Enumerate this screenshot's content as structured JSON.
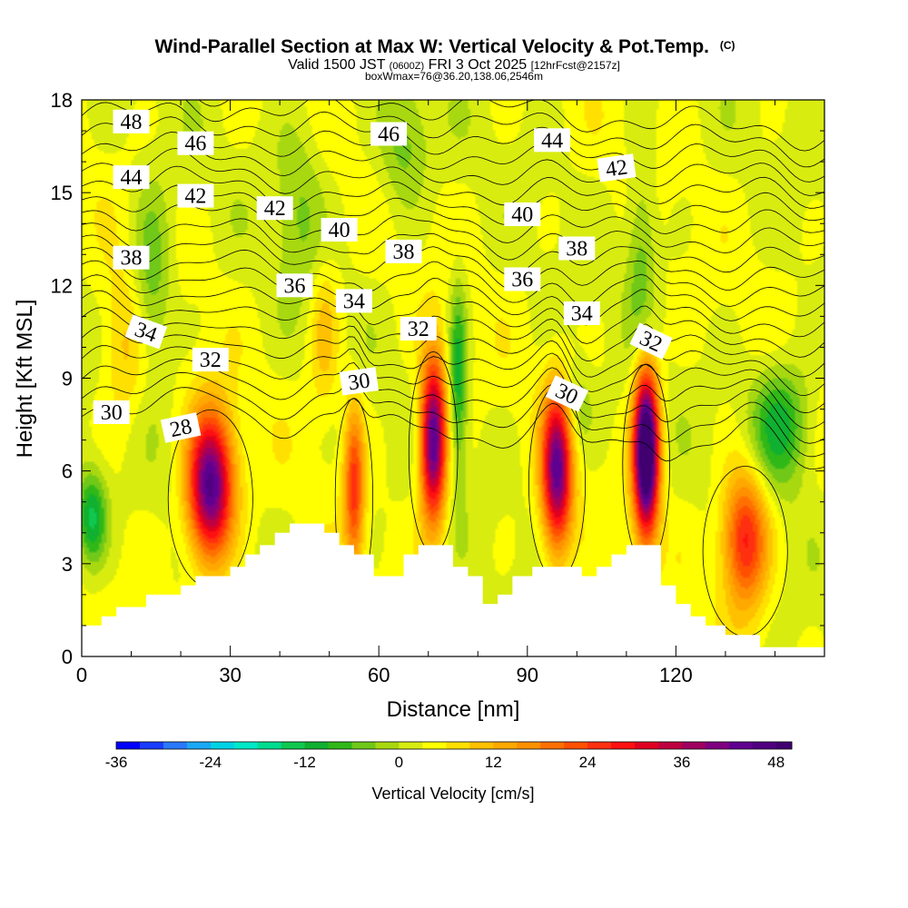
{
  "chart_data": {
    "type": "heatmap",
    "title": "Wind-Parallel Section at Max W: Vertical Velocity & Pot.Temp.",
    "title_units": "(C)",
    "subtitle_prefix": "Valid 1500 JST",
    "subtitle_utc": "(0600Z)",
    "subtitle_date": "FRI 3 Oct 2025",
    "subtitle_fcst": "[12hrFcst@2157z]",
    "subtitle_box": "boxWmax=76@36.20,138.06,2546m",
    "xlabel": "Distance [nm]",
    "ylabel": "Height [Kft MSL]",
    "xlim": [
      0,
      150
    ],
    "ylim": [
      0,
      18
    ],
    "x_ticks": [
      0,
      30,
      60,
      90,
      120
    ],
    "x_tick_labels": [
      "0",
      "30",
      "60",
      "90",
      "120"
    ],
    "y_ticks": [
      0,
      3,
      6,
      9,
      12,
      15,
      18
    ],
    "y_tick_labels": [
      "0",
      "3",
      "6",
      "9",
      "12",
      "15",
      "18"
    ],
    "colorbar": {
      "label": "Vertical Velocity [cm/s]",
      "min": -36,
      "max": 50,
      "step": 3,
      "tick_values": [
        -36,
        -24,
        -12,
        0,
        12,
        24,
        36,
        48
      ],
      "tick_labels": [
        "-36",
        "-24",
        "-12",
        "0",
        "12",
        "24",
        "36",
        "48"
      ],
      "colors": [
        "#0000ff",
        "#1a3cff",
        "#2a78ff",
        "#1aa8f5",
        "#00d2e6",
        "#00e8c8",
        "#00dc90",
        "#10c850",
        "#10b030",
        "#30b818",
        "#70c818",
        "#a8d810",
        "#d8ec10",
        "#ffff00",
        "#ffe000",
        "#ffc000",
        "#ffa800",
        "#ff9000",
        "#ff7000",
        "#ff5000",
        "#ff3010",
        "#ff1010",
        "#e00020",
        "#c00040",
        "#a00060",
        "#800080",
        "#600090",
        "#500080",
        "#400070"
      ]
    },
    "terrain_profile": [
      [
        0,
        1.0
      ],
      [
        4,
        1.0
      ],
      [
        4,
        1.3
      ],
      [
        7,
        1.3
      ],
      [
        7,
        1.6
      ],
      [
        13,
        1.6
      ],
      [
        13,
        2.0
      ],
      [
        20,
        2.0
      ],
      [
        20,
        2.3
      ],
      [
        23,
        2.3
      ],
      [
        23,
        2.6
      ],
      [
        30,
        2.6
      ],
      [
        30,
        2.9
      ],
      [
        33,
        2.9
      ],
      [
        33,
        3.3
      ],
      [
        36,
        3.3
      ],
      [
        36,
        3.6
      ],
      [
        39,
        3.6
      ],
      [
        39,
        4.0
      ],
      [
        42,
        4.0
      ],
      [
        42,
        4.3
      ],
      [
        49,
        4.3
      ],
      [
        49,
        4.0
      ],
      [
        52,
        4.0
      ],
      [
        52,
        3.6
      ],
      [
        55,
        3.6
      ],
      [
        55,
        3.3
      ],
      [
        59,
        3.3
      ],
      [
        59,
        2.6
      ],
      [
        65,
        2.6
      ],
      [
        65,
        3.3
      ],
      [
        68,
        3.3
      ],
      [
        68,
        3.6
      ],
      [
        75,
        3.6
      ],
      [
        75,
        2.9
      ],
      [
        78,
        2.9
      ],
      [
        78,
        2.6
      ],
      [
        81,
        2.6
      ],
      [
        81,
        1.7
      ],
      [
        84,
        1.7
      ],
      [
        84,
        2.0
      ],
      [
        87,
        2.0
      ],
      [
        87,
        2.6
      ],
      [
        91,
        2.6
      ],
      [
        91,
        2.9
      ],
      [
        101,
        2.9
      ],
      [
        101,
        2.6
      ],
      [
        104,
        2.6
      ],
      [
        104,
        2.9
      ],
      [
        107,
        2.9
      ],
      [
        107,
        3.3
      ],
      [
        110,
        3.3
      ],
      [
        110,
        3.6
      ],
      [
        117,
        3.6
      ],
      [
        117,
        2.3
      ],
      [
        120,
        2.3
      ],
      [
        120,
        1.7
      ],
      [
        123,
        1.7
      ],
      [
        123,
        1.3
      ],
      [
        126,
        1.3
      ],
      [
        126,
        1.0
      ],
      [
        130,
        1.0
      ],
      [
        130,
        0.7
      ],
      [
        137,
        0.7
      ],
      [
        137,
        0.3
      ],
      [
        150,
        0.3
      ]
    ],
    "w_cells": [
      {
        "x": 26,
        "z": 5.5,
        "sx": 4.5,
        "sz": 2.3,
        "a": 44
      },
      {
        "x": 55,
        "z": 5.5,
        "sx": 2.0,
        "sz": 2.6,
        "a": 22
      },
      {
        "x": 71,
        "z": 7.0,
        "sx": 2.6,
        "sz": 2.6,
        "a": 44
      },
      {
        "x": 96,
        "z": 6.0,
        "sx": 3.0,
        "sz": 2.5,
        "a": 40
      },
      {
        "x": 114,
        "z": 6.6,
        "sx": 2.5,
        "sz": 2.6,
        "a": 58
      },
      {
        "x": 134,
        "z": 3.8,
        "sx": 4.5,
        "sz": 2.2,
        "a": 26
      },
      {
        "x": 9,
        "z": 10.0,
        "sx": 5.0,
        "sz": 2.5,
        "a": 8
      },
      {
        "x": 49,
        "z": 10.5,
        "sx": 3.0,
        "sz": 2.5,
        "a": 8
      },
      {
        "x": 2,
        "z": 4.5,
        "sx": 3.0,
        "sz": 1.5,
        "a": -16
      },
      {
        "x": 14,
        "z": 12.0,
        "sx": 4.0,
        "sz": 3.0,
        "a": -10
      },
      {
        "x": 76,
        "z": 9.0,
        "sx": 1.8,
        "sz": 3.0,
        "a": -14
      },
      {
        "x": 141,
        "z": 7.5,
        "sx": 6.0,
        "sz": 2.0,
        "a": -14
      },
      {
        "x": 113,
        "z": 13.0,
        "sx": 3.0,
        "sz": 3.0,
        "a": -8
      },
      {
        "x": 65,
        "z": 16.5,
        "sx": 5.0,
        "sz": 2.0,
        "a": -8
      },
      {
        "x": 100,
        "z": 8.0,
        "sx": 3.0,
        "sz": 1.5,
        "a": -6
      },
      {
        "x": 44,
        "z": 14.5,
        "sx": 5.0,
        "sz": 3.0,
        "a": -6
      }
    ],
    "theta_contours": [
      28,
      29,
      30,
      31,
      32,
      33,
      34,
      35,
      36,
      37,
      38,
      39,
      40,
      41,
      42,
      43,
      44,
      45,
      46,
      47,
      48
    ],
    "contour_labels": [
      {
        "value": "48",
        "x": 10,
        "z": 17.3,
        "angle": 0
      },
      {
        "value": "46",
        "x": 23,
        "z": 16.6,
        "angle": 0
      },
      {
        "value": "46",
        "x": 62,
        "z": 16.9,
        "angle": 0
      },
      {
        "value": "44",
        "x": 95,
        "z": 16.7,
        "angle": 0
      },
      {
        "value": "42",
        "x": 108,
        "z": 15.8,
        "angle": -8
      },
      {
        "value": "44",
        "x": 10,
        "z": 15.5,
        "angle": 0
      },
      {
        "value": "42",
        "x": 23,
        "z": 14.9,
        "angle": 0
      },
      {
        "value": "42",
        "x": 39,
        "z": 14.5,
        "angle": 0
      },
      {
        "value": "40",
        "x": 52,
        "z": 13.8,
        "angle": 0
      },
      {
        "value": "40",
        "x": 89,
        "z": 14.3,
        "angle": 0
      },
      {
        "value": "38",
        "x": 10,
        "z": 12.9,
        "angle": 0
      },
      {
        "value": "38",
        "x": 65,
        "z": 13.1,
        "angle": 0
      },
      {
        "value": "38",
        "x": 100,
        "z": 13.2,
        "angle": 0
      },
      {
        "value": "36",
        "x": 43,
        "z": 12.0,
        "angle": 0
      },
      {
        "value": "36",
        "x": 89,
        "z": 12.2,
        "angle": 0
      },
      {
        "value": "34",
        "x": 55,
        "z": 11.5,
        "angle": 0
      },
      {
        "value": "34",
        "x": 101,
        "z": 11.1,
        "angle": 0
      },
      {
        "value": "34",
        "x": 13,
        "z": 10.5,
        "angle": 20
      },
      {
        "value": "32",
        "x": 26,
        "z": 9.6,
        "angle": 0
      },
      {
        "value": "32",
        "x": 68,
        "z": 10.6,
        "angle": 0
      },
      {
        "value": "32",
        "x": 115,
        "z": 10.2,
        "angle": 25
      },
      {
        "value": "30",
        "x": 56,
        "z": 8.9,
        "angle": -8
      },
      {
        "value": "30",
        "x": 98,
        "z": 8.5,
        "angle": 25
      },
      {
        "value": "30",
        "x": 6,
        "z": 7.9,
        "angle": 0
      },
      {
        "value": "28",
        "x": 20,
        "z": 7.4,
        "angle": -12
      }
    ]
  }
}
